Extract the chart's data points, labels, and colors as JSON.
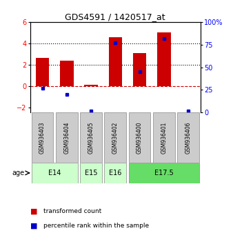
{
  "title": "GDS4591 / 1420517_at",
  "samples": [
    "GSM936403",
    "GSM936404",
    "GSM936405",
    "GSM936402",
    "GSM936400",
    "GSM936401",
    "GSM936406"
  ],
  "transformed_counts": [
    2.65,
    2.4,
    0.08,
    4.6,
    3.05,
    5.0,
    -0.05
  ],
  "percentile_ranks": [
    27.0,
    20.0,
    2.0,
    77.0,
    45.0,
    82.0,
    2.0
  ],
  "bar_color": "#cc0000",
  "dot_color": "#0000cc",
  "ylim_left": [
    -2.5,
    6.0
  ],
  "ylim_right": [
    0,
    100
  ],
  "yticks_left": [
    -2,
    0,
    2,
    4,
    6
  ],
  "yticks_right": [
    0,
    25,
    50,
    75,
    100
  ],
  "yticklabels_right": [
    "0",
    "25",
    "50",
    "75",
    "100%"
  ],
  "dotted_lines": [
    2.0,
    4.0
  ],
  "background_color": "#ffffff",
  "sample_box_color": "#cccccc",
  "age_e14_color": "#ccffcc",
  "age_e175_color": "#66dd66",
  "age_groups": [
    {
      "label": "E14",
      "start": 0,
      "end": 1,
      "color_key": "age_e14_color"
    },
    {
      "label": "E15",
      "start": 2,
      "end": 2,
      "color_key": "age_e14_color"
    },
    {
      "label": "E16",
      "start": 3,
      "end": 3,
      "color_key": "age_e14_color"
    },
    {
      "label": "E17.5",
      "start": 4,
      "end": 6,
      "color_key": "age_e175_color"
    }
  ]
}
